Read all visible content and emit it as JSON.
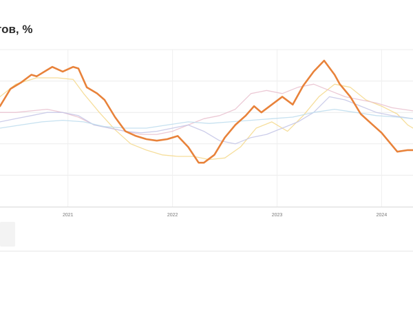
{
  "chart_data": {
    "type": "line",
    "title": "тов, %",
    "xlabel": "",
    "ylabel": "",
    "x_ticks": [
      "2021",
      "2022",
      "2023",
      "2024"
    ],
    "x_range": [
      2020.35,
      2024.3
    ],
    "ylim": [
      0,
      100
    ],
    "grid": true,
    "series": [
      {
        "highlight": true,
        "color": "#e8823a",
        "points": [
          [
            2020.35,
            64
          ],
          [
            2020.45,
            75
          ],
          [
            2020.55,
            79
          ],
          [
            2020.65,
            84
          ],
          [
            2020.7,
            83
          ],
          [
            2020.8,
            87
          ],
          [
            2020.85,
            89
          ],
          [
            2020.95,
            86
          ],
          [
            2021.05,
            89
          ],
          [
            2021.1,
            88
          ],
          [
            2021.18,
            76
          ],
          [
            2021.28,
            72
          ],
          [
            2021.35,
            68
          ],
          [
            2021.45,
            57
          ],
          [
            2021.55,
            48
          ],
          [
            2021.65,
            45
          ],
          [
            2021.75,
            43
          ],
          [
            2021.85,
            42
          ],
          [
            2021.95,
            43
          ],
          [
            2022.05,
            45
          ],
          [
            2022.15,
            38
          ],
          [
            2022.25,
            28
          ],
          [
            2022.3,
            28
          ],
          [
            2022.4,
            33
          ],
          [
            2022.5,
            44
          ],
          [
            2022.6,
            52
          ],
          [
            2022.7,
            58
          ],
          [
            2022.78,
            64
          ],
          [
            2022.85,
            60
          ],
          [
            2022.95,
            65
          ],
          [
            2023.05,
            70
          ],
          [
            2023.15,
            65
          ],
          [
            2023.25,
            77
          ],
          [
            2023.35,
            86
          ],
          [
            2023.45,
            93
          ],
          [
            2023.55,
            84
          ],
          [
            2023.6,
            78
          ],
          [
            2023.7,
            70
          ],
          [
            2023.8,
            59
          ],
          [
            2023.9,
            53
          ],
          [
            2024.0,
            47
          ],
          [
            2024.1,
            39
          ],
          [
            2024.15,
            35
          ],
          [
            2024.25,
            36
          ],
          [
            2024.3,
            36
          ]
        ]
      },
      {
        "color": "#f5d88a",
        "points": [
          [
            2020.35,
            70
          ],
          [
            2020.5,
            78
          ],
          [
            2020.7,
            82
          ],
          [
            2020.9,
            82
          ],
          [
            2021.05,
            81
          ],
          [
            2021.15,
            72
          ],
          [
            2021.3,
            60
          ],
          [
            2021.45,
            49
          ],
          [
            2021.6,
            40
          ],
          [
            2021.75,
            36
          ],
          [
            2021.9,
            33
          ],
          [
            2022.05,
            32
          ],
          [
            2022.2,
            32
          ],
          [
            2022.35,
            30
          ],
          [
            2022.5,
            31
          ],
          [
            2022.65,
            38
          ],
          [
            2022.8,
            50
          ],
          [
            2022.95,
            54
          ],
          [
            2023.1,
            48
          ],
          [
            2023.25,
            58
          ],
          [
            2023.4,
            70
          ],
          [
            2023.55,
            78
          ],
          [
            2023.7,
            76
          ],
          [
            2023.85,
            68
          ],
          [
            2024.0,
            64
          ],
          [
            2024.15,
            59
          ],
          [
            2024.25,
            52
          ],
          [
            2024.3,
            50
          ]
        ]
      },
      {
        "color": "#e9c0ce",
        "points": [
          [
            2020.35,
            60
          ],
          [
            2020.5,
            60
          ],
          [
            2020.65,
            61
          ],
          [
            2020.8,
            62
          ],
          [
            2020.95,
            60
          ],
          [
            2021.1,
            57
          ],
          [
            2021.25,
            52
          ],
          [
            2021.4,
            50
          ],
          [
            2021.55,
            48
          ],
          [
            2021.7,
            46
          ],
          [
            2021.85,
            46
          ],
          [
            2022.0,
            48
          ],
          [
            2022.15,
            52
          ],
          [
            2022.3,
            56
          ],
          [
            2022.45,
            58
          ],
          [
            2022.6,
            62
          ],
          [
            2022.75,
            72
          ],
          [
            2022.9,
            74
          ],
          [
            2023.05,
            72
          ],
          [
            2023.2,
            76
          ],
          [
            2023.35,
            78
          ],
          [
            2023.5,
            74
          ],
          [
            2023.65,
            70
          ],
          [
            2023.8,
            68
          ],
          [
            2023.95,
            66
          ],
          [
            2024.1,
            63
          ],
          [
            2024.2,
            62
          ],
          [
            2024.3,
            61
          ]
        ]
      },
      {
        "color": "#c3c4e6",
        "points": [
          [
            2020.35,
            54
          ],
          [
            2020.5,
            56
          ],
          [
            2020.65,
            58
          ],
          [
            2020.8,
            60
          ],
          [
            2020.95,
            60
          ],
          [
            2021.1,
            58
          ],
          [
            2021.25,
            52
          ],
          [
            2021.4,
            50
          ],
          [
            2021.55,
            48
          ],
          [
            2021.7,
            47
          ],
          [
            2021.85,
            48
          ],
          [
            2022.0,
            50
          ],
          [
            2022.15,
            52
          ],
          [
            2022.3,
            48
          ],
          [
            2022.45,
            42
          ],
          [
            2022.6,
            40
          ],
          [
            2022.75,
            44
          ],
          [
            2022.9,
            46
          ],
          [
            2023.05,
            50
          ],
          [
            2023.2,
            54
          ],
          [
            2023.35,
            60
          ],
          [
            2023.5,
            70
          ],
          [
            2023.65,
            68
          ],
          [
            2023.8,
            64
          ],
          [
            2023.95,
            60
          ],
          [
            2024.1,
            58
          ],
          [
            2024.2,
            57
          ],
          [
            2024.3,
            56
          ]
        ]
      },
      {
        "color": "#bcdced",
        "points": [
          [
            2020.35,
            50
          ],
          [
            2020.55,
            52
          ],
          [
            2020.75,
            54
          ],
          [
            2020.95,
            55
          ],
          [
            2021.15,
            54
          ],
          [
            2021.35,
            51
          ],
          [
            2021.55,
            50
          ],
          [
            2021.75,
            50
          ],
          [
            2021.95,
            52
          ],
          [
            2022.15,
            54
          ],
          [
            2022.35,
            53
          ],
          [
            2022.55,
            54
          ],
          [
            2022.75,
            55
          ],
          [
            2022.95,
            56
          ],
          [
            2023.15,
            57
          ],
          [
            2023.35,
            60
          ],
          [
            2023.55,
            62
          ],
          [
            2023.75,
            60
          ],
          [
            2023.95,
            58
          ],
          [
            2024.15,
            57
          ],
          [
            2024.3,
            56
          ]
        ]
      }
    ]
  }
}
